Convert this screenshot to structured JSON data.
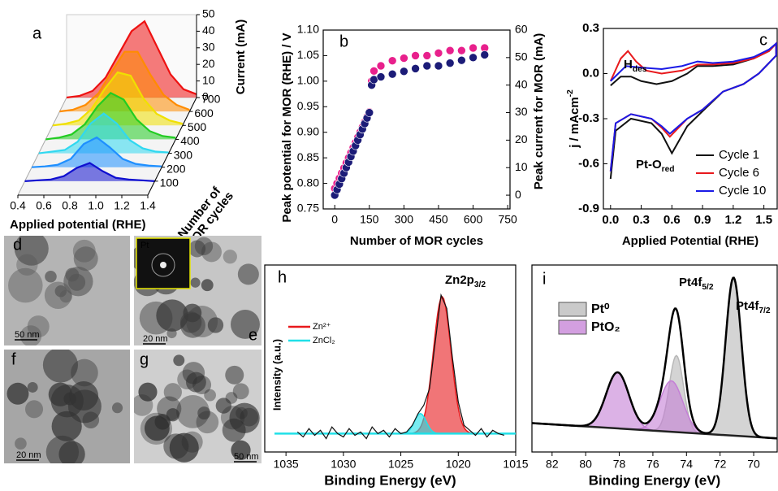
{
  "chart_data": [
    {
      "type": "waterfall",
      "panel": "a",
      "x": [
        0.4,
        0.5,
        0.6,
        0.7,
        0.8,
        0.9,
        1.0,
        1.1,
        1.2,
        1.3,
        1.4
      ],
      "xlim": [
        0.4,
        1.4
      ],
      "xticks": [
        0.4,
        0.6,
        0.8,
        {
          "value": 1,
          "label": "1.0"
        },
        1.2,
        1.4
      ],
      "x_label": "Applied potential (RHE)",
      "zlim": [
        0,
        50
      ],
      "zticks": [
        0,
        10,
        20,
        30,
        40,
        50
      ],
      "z_label": "Current (mA)",
      "depthlim": [
        0,
        700
      ],
      "depthticks": [
        100,
        200,
        300,
        400,
        500,
        600,
        700
      ],
      "depth_label": [
        "Number of",
        "MOR cycles"
      ],
      "series": [
        {
          "depth": 100,
          "color": "#1010d0",
          "values": [
            0,
            0.5,
            1,
            3,
            8,
            11,
            6,
            2,
            1,
            0.5,
            0
          ]
        },
        {
          "depth": 200,
          "color": "#1e8fff",
          "values": [
            0,
            0.5,
            1.5,
            5,
            14,
            18,
            12,
            5,
            2,
            1,
            0.5
          ]
        },
        {
          "depth": 300,
          "color": "#30d8f0",
          "values": [
            0,
            1,
            2,
            7,
            18,
            24,
            18,
            8,
            3,
            1,
            0.5
          ]
        },
        {
          "depth": 400,
          "color": "#22cc22",
          "values": [
            0,
            1,
            3,
            9,
            20,
            28,
            24,
            12,
            5,
            2,
            1
          ]
        },
        {
          "depth": 500,
          "color": "#f0e000",
          "values": [
            0,
            1,
            3,
            10,
            22,
            32,
            30,
            16,
            7,
            3,
            1
          ]
        },
        {
          "depth": 600,
          "color": "#ff8c00",
          "values": [
            0,
            1,
            4,
            11,
            24,
            36,
            36,
            22,
            10,
            4,
            1
          ]
        },
        {
          "depth": 700,
          "color": "#ee1111",
          "values": [
            0,
            1,
            4,
            12,
            26,
            40,
            46,
            30,
            14,
            5,
            2
          ]
        }
      ]
    },
    {
      "type": "scatter",
      "panel": "b",
      "x_label": "Number of MOR cycles",
      "y_label": "Peak potential for MOR (RHE) / V",
      "y2_label": "Peak current for MOR (mA)",
      "x": [
        0,
        10,
        20,
        30,
        40,
        50,
        60,
        70,
        80,
        90,
        100,
        110,
        120,
        130,
        140,
        150,
        160,
        170,
        200,
        250,
        300,
        350,
        400,
        450,
        500,
        550,
        600,
        650
      ],
      "xlim": [
        -50,
        760
      ],
      "xticks": [
        0,
        150,
        300,
        450,
        600,
        750
      ],
      "ylim": [
        0.75,
        1.1
      ],
      "yticks": [
        0.75,
        {
          "value": 0.8,
          "label": "0.80"
        },
        0.85,
        {
          "value": 0.9,
          "label": "0.90"
        },
        0.95,
        {
          "value": 1,
          "label": "1.00"
        },
        1.05,
        {
          "value": 1.1,
          "label": "1.10"
        }
      ],
      "y2lim": [
        -5,
        60
      ],
      "y2ticks": [
        0,
        10,
        20,
        30,
        40,
        50,
        60
      ],
      "series": [
        {
          "color": "#e8208c",
          "values": [
            0.79,
            0.8,
            0.81,
            0.82,
            0.83,
            0.84,
            0.85,
            0.86,
            0.87,
            0.88,
            0.89,
            0.9,
            0.91,
            0.92,
            0.93,
            0.94,
            1.0,
            1.02,
            1.03,
            1.04,
            1.045,
            1.05,
            1.05,
            1.055,
            1.06,
            1.06,
            1.065,
            1.065
          ]
        },
        {
          "color": "#1c1c78",
          "axis": "y2",
          "values": [
            0,
            2,
            4,
            6,
            8,
            10,
            12,
            14,
            16,
            18,
            20,
            22,
            24,
            26,
            28,
            30,
            40,
            42,
            43,
            44,
            45,
            46,
            47,
            47,
            48,
            49,
            50,
            51
          ]
        }
      ]
    },
    {
      "type": "line",
      "panel": "c",
      "x_label": "Applied Potential (RHE)",
      "y_label": {
        "text": "j / mAcm",
        "sup": "-2"
      },
      "xlim": [
        -0.07,
        1.63
      ],
      "xticks": [
        {
          "value": 0,
          "label": "0.0"
        },
        0.3,
        0.6,
        0.9,
        1.2,
        1.5
      ],
      "ylim": [
        -0.9,
        0.3
      ],
      "yticks": [
        -0.9,
        -0.6,
        -0.3,
        {
          "value": 0,
          "label": "0.0"
        },
        0.3
      ],
      "legend": "lower right",
      "annotations": [
        {
          "text": "H",
          "sub": "des"
        },
        {
          "text": "Pt-O",
          "sub": "red"
        }
      ],
      "series": [
        {
          "name": "Cycle 1",
          "color": "#111111",
          "x": [
            0,
            0.1,
            0.2,
            0.3,
            0.45,
            0.6,
            0.75,
            0.85,
            1.0,
            1.2,
            1.4,
            1.55,
            1.62,
            1.62,
            1.45,
            1.3,
            1.1,
            0.9,
            0.75,
            0.6,
            0.5,
            0.4,
            0.2,
            0.05,
            0
          ],
          "values": [
            -0.08,
            -0.02,
            -0.02,
            -0.05,
            -0.07,
            -0.05,
            0,
            0.05,
            0.05,
            0.06,
            0.1,
            0.15,
            0.2,
            0.12,
            0,
            -0.07,
            -0.12,
            -0.25,
            -0.35,
            -0.53,
            -0.4,
            -0.33,
            -0.3,
            -0.38,
            -0.7
          ]
        },
        {
          "name": "Cycle 6",
          "color": "#e8191c",
          "x": [
            0,
            0.1,
            0.17,
            0.25,
            0.35,
            0.5,
            0.7,
            0.85,
            1.0,
            1.2,
            1.4,
            1.55,
            1.62,
            1.62,
            1.45,
            1.3,
            1.1,
            0.9,
            0.75,
            0.58,
            0.5,
            0.4,
            0.2,
            0.05,
            0
          ],
          "values": [
            -0.05,
            0.1,
            0.15,
            0.08,
            0.02,
            0,
            0.02,
            0.06,
            0.06,
            0.07,
            0.1,
            0.15,
            0.2,
            0.12,
            0,
            -0.07,
            -0.12,
            -0.24,
            -0.3,
            -0.42,
            -0.36,
            -0.3,
            -0.27,
            -0.33,
            -0.65
          ]
        },
        {
          "name": "Cycle 10",
          "color": "#1a1ae6",
          "x": [
            0,
            0.15,
            0.3,
            0.5,
            0.7,
            0.85,
            1.0,
            1.2,
            1.4,
            1.55,
            1.62,
            1.62,
            1.45,
            1.3,
            1.1,
            0.9,
            0.75,
            0.58,
            0.5,
            0.4,
            0.2,
            0.05,
            0
          ],
          "values": [
            -0.05,
            0.05,
            0.04,
            0.03,
            0.05,
            0.08,
            0.07,
            0.08,
            0.11,
            0.16,
            0.2,
            0.12,
            0,
            -0.07,
            -0.12,
            -0.24,
            -0.3,
            -0.4,
            -0.35,
            -0.3,
            -0.27,
            -0.33,
            -0.65
          ]
        }
      ]
    },
    {
      "type": "xps",
      "panel": "h",
      "x_label": "Binding Energy (eV)",
      "y_label": "Intensity (a.u.)",
      "annotations": [
        {
          "text": "Zn2p",
          "sub": "3/2"
        }
      ],
      "xlim": [
        1036,
        1015
      ],
      "xticks": [
        1035,
        1030,
        1025,
        1020,
        1015
      ],
      "ylim": [
        -6,
        106
      ],
      "x": [
        1034,
        1033.5,
        1033,
        1032.5,
        1032,
        1031.5,
        1031,
        1030.5,
        1030,
        1029.5,
        1029,
        1028.5,
        1028,
        1027.5,
        1027,
        1026.5,
        1026,
        1025.5,
        1025,
        1024.5,
        1024,
        1023.5,
        1023,
        1022.5,
        1022,
        1021.5,
        1021,
        1020.5,
        1020,
        1019.5,
        1019,
        1018.5,
        1018,
        1017.5,
        1017,
        1016.5,
        1016
      ],
      "series": [
        {
          "color": "#111111",
          "values": [
            6,
            3,
            8,
            4,
            7,
            2,
            9,
            5,
            3,
            8,
            4,
            6,
            2,
            9,
            5,
            7,
            3,
            8,
            5,
            6,
            10,
            17,
            22,
            32,
            60,
            88,
            80,
            50,
            24,
            10,
            7,
            4,
            8,
            3,
            7,
            5,
            4
          ]
        }
      ],
      "background": [
        5,
        5
      ],
      "background_color": "#20e0e8",
      "components": [
        {
          "name": "Zn²⁺",
          "color": "#e8191c",
          "peaks": [
            {
              "center": 1021.4,
              "height": 82,
              "fwhm": 1.8
            }
          ]
        },
        {
          "name": "ZnCl₂",
          "color": "#20e0e8",
          "peaks": [
            {
              "center": 1023.3,
              "height": 12,
              "fwhm": 1.2
            }
          ]
        }
      ]
    },
    {
      "type": "xps",
      "panel": "i",
      "x_label": "Binding Energy (eV)",
      "annotations": [
        {
          "text": "Pt4f",
          "sub": "5/2"
        },
        {
          "text": "Pt4f",
          "sub": "7/2"
        }
      ],
      "xlim": [
        83.2,
        68.6
      ],
      "xticks": [
        82,
        80,
        78,
        76,
        74,
        72,
        70
      ],
      "ylim": [
        -5,
        105
      ],
      "background": [
        12,
        3
      ],
      "background_color": "#222222",
      "components": [
        {
          "name": "Pt⁰",
          "color": "#b8b8b8",
          "peaks": [
            {
              "center": 74.6,
              "height": 45,
              "fwhm": 1.0
            },
            {
              "center": 71.2,
              "height": 93,
              "fwhm": 1.1
            }
          ]
        },
        {
          "name": "PtO₂",
          "color": "#c47fd6",
          "peaks": [
            {
              "center": 78.1,
              "height": 33,
              "fwhm": 1.6
            },
            {
              "center": 74.9,
              "height": 30,
              "fwhm": 1.6
            }
          ]
        }
      ]
    }
  ],
  "images": [
    {
      "label": "d",
      "scale": "50 nm"
    },
    {
      "label": "e",
      "scale": "20 nm",
      "inset": "Pt"
    },
    {
      "label": "f",
      "scale": "20 nm"
    },
    {
      "label": "g",
      "scale": "50 nm"
    }
  ]
}
